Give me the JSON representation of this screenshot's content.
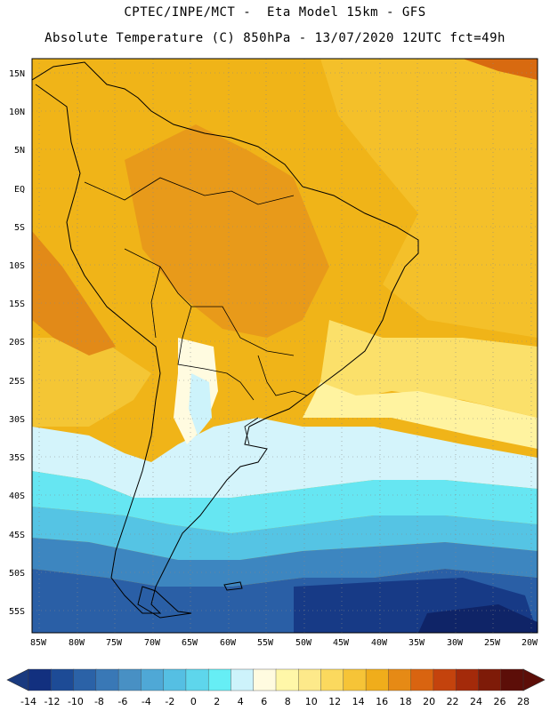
{
  "title_line1": "CPTEC/INPE/MCT -  Eta Model 15km - GFS",
  "title_line2": "Absolute Temperature (C) 850hPa - 13/07/2020 12UTC fct=49h",
  "lat_labels": [
    "15N",
    "10N",
    "5N",
    "EQ",
    "5S",
    "10S",
    "15S",
    "20S",
    "25S",
    "30S",
    "35S",
    "40S",
    "45S",
    "50S",
    "55S"
  ],
  "lon_labels": [
    "85W",
    "80W",
    "75W",
    "70W",
    "65W",
    "60W",
    "55W",
    "50W",
    "45W",
    "40W",
    "35W",
    "30W",
    "25W",
    "20W"
  ],
  "colorbar": {
    "labels": [
      "-14",
      "-12",
      "-10",
      "-8",
      "-6",
      "-4",
      "-2",
      "0",
      "2",
      "4",
      "6",
      "8",
      "10",
      "12",
      "14",
      "16",
      "18",
      "20",
      "22",
      "24",
      "26",
      "28"
    ],
    "colors": [
      "#12307f",
      "#1d4b96",
      "#2b62a7",
      "#3978b6",
      "#4890c4",
      "#4fa8d6",
      "#55bfe3",
      "#5ed6ec",
      "#66eef5",
      "#cdf3fb",
      "#fffbe0",
      "#fff7a8",
      "#fde98a",
      "#fbd95e",
      "#f6c437",
      "#f0ad1b",
      "#e68a15",
      "#d96410",
      "#c4430d",
      "#a42a0a",
      "#7e1b08",
      "#5c0e08"
    ],
    "low_arrow_color": "#1a3a7f",
    "high_arrow_color": "#5c0e08"
  },
  "legend_title": ""
}
